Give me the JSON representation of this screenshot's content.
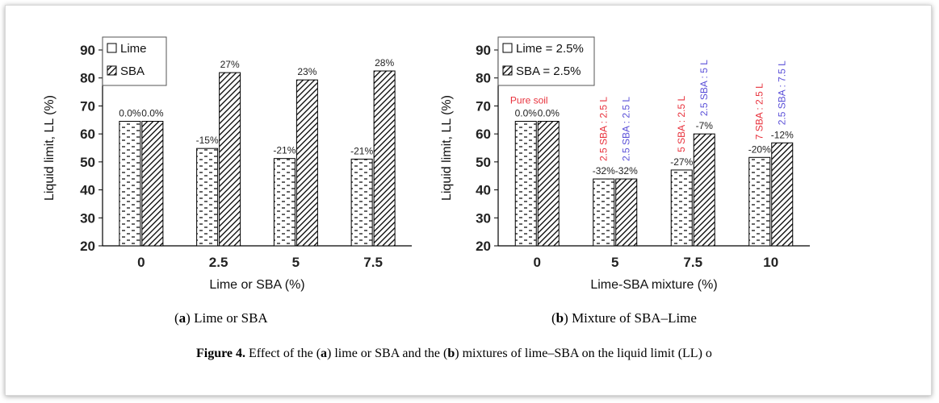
{
  "chart_data": [
    {
      "type": "bar",
      "ylabel": "Liquid limit, LL (%)",
      "xlabel": "Lime or SBA (%)",
      "ylim": [
        20,
        90
      ],
      "yticks": [
        20,
        30,
        40,
        50,
        60,
        70,
        80,
        90
      ],
      "categories": [
        "0",
        "2.5",
        "5",
        "7.5"
      ],
      "series": [
        {
          "name": "Lime",
          "values": [
            64.5,
            54.8,
            51.2,
            51.0
          ],
          "labels": [
            "0.0%",
            "-15%",
            "-21%",
            "-21%"
          ],
          "pattern": "dashes"
        },
        {
          "name": "SBA",
          "values": [
            64.5,
            81.9,
            79.3,
            82.5
          ],
          "labels": [
            "0.0%",
            "27%",
            "23%",
            "28%"
          ],
          "pattern": "hatch"
        }
      ],
      "legend": "top-left",
      "grid": false
    },
    {
      "type": "bar",
      "ylabel": "Liquid limit, LL (%)",
      "xlabel": "Lime-SBA mixture (%)",
      "ylim": [
        20,
        90
      ],
      "yticks": [
        20,
        30,
        40,
        50,
        60,
        70,
        80,
        90
      ],
      "categories": [
        "0",
        "5",
        "7.5",
        "10"
      ],
      "series": [
        {
          "name": "Lime = 2.5%",
          "values": [
            64.5,
            43.9,
            47.1,
            51.6
          ],
          "labels": [
            "0.0%",
            "-32%",
            "-27%",
            "-20%"
          ],
          "pattern": "dashes"
        },
        {
          "name": "SBA = 2.5%",
          "values": [
            64.5,
            43.9,
            60.0,
            56.8
          ],
          "labels": [
            "0.0%",
            "-32%",
            "-7%",
            "-12%"
          ],
          "pattern": "hatch"
        }
      ],
      "annotations": [
        {
          "text": "Pure soil",
          "category": 0,
          "series": 0,
          "color": "#e8313c",
          "rotated": false
        },
        {
          "text": "2.5 SBA : 2.5 L",
          "category": 1,
          "series": 0,
          "color": "#e8313c",
          "rotated": true
        },
        {
          "text": "2.5 SBA : 2.5 L",
          "category": 1,
          "series": 1,
          "color": "#5a4fd8",
          "rotated": true
        },
        {
          "text": "5 SBA : 2.5 L",
          "category": 2,
          "series": 0,
          "color": "#e8313c",
          "rotated": true
        },
        {
          "text": "2.5 SBA : 5 L",
          "category": 2,
          "series": 1,
          "color": "#5a4fd8",
          "rotated": true
        },
        {
          "text": "7 SBA : 2.5 L",
          "category": 3,
          "series": 0,
          "color": "#e8313c",
          "rotated": true
        },
        {
          "text": "2.5 SBA : 7.5 L",
          "category": 3,
          "series": 1,
          "color": "#5a4fd8",
          "rotated": true
        }
      ],
      "legend": "top-left",
      "grid": false
    }
  ],
  "subcaptions": [
    {
      "letter": "a",
      "text": "Lime or SBA"
    },
    {
      "letter": "b",
      "text": "Mixture of SBA–Lime"
    }
  ],
  "figure_caption": {
    "label": "Figure 4.",
    "parts": [
      {
        "t": " Effect of the (",
        "b": false
      },
      {
        "t": "a",
        "b": true
      },
      {
        "t": ") lime or SBA and the (",
        "b": false
      },
      {
        "t": "b",
        "b": true
      },
      {
        "t": ") mixtures of lime–SBA on the liquid limit (LL) o",
        "b": false
      }
    ]
  }
}
